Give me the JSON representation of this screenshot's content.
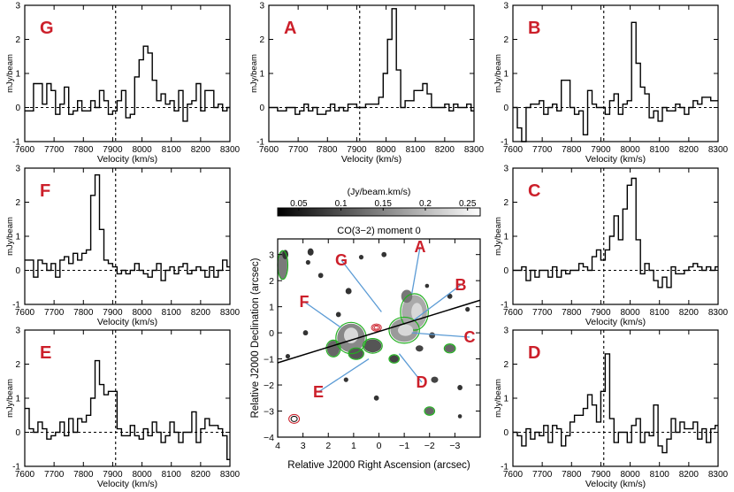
{
  "figure": {
    "spectrum_xlabel": "Velocity (km/s)",
    "spectrum_ylabel": "mJy/beam",
    "spectrum_xticks": [
      "7600",
      "7700",
      "7800",
      "7900",
      "8000",
      "8100",
      "8200",
      "8300"
    ],
    "spectrum_yticks": [
      "-1",
      "0",
      "1",
      "2",
      "3"
    ]
  },
  "chart_data": [
    {
      "type": "line",
      "panel": "G",
      "step": true,
      "xlim": [
        7600,
        8300
      ],
      "ylim": [
        -1,
        3
      ],
      "vline": 7910,
      "hline": 0,
      "x": [
        7600,
        7615,
        7630,
        7645,
        7660,
        7675,
        7690,
        7705,
        7720,
        7735,
        7750,
        7765,
        7780,
        7795,
        7810,
        7825,
        7840,
        7855,
        7870,
        7885,
        7900,
        7915,
        7930,
        7945,
        7960,
        7975,
        7990,
        8005,
        8020,
        8035,
        8050,
        8065,
        8080,
        8095,
        8110,
        8125,
        8140,
        8155,
        8170,
        8185,
        8200,
        8215,
        8230,
        8245,
        8260,
        8275,
        8290
      ],
      "y": [
        -0.1,
        -0.1,
        0.7,
        0.7,
        0.1,
        0.7,
        0.5,
        -0.2,
        0.1,
        0.6,
        -0.2,
        -0.1,
        0.2,
        -0.1,
        -0.1,
        0.2,
        0.0,
        0.5,
        0.2,
        -0.2,
        -0.1,
        0.2,
        0.5,
        -0.3,
        -0.2,
        0.9,
        1.4,
        1.8,
        1.6,
        0.8,
        0.2,
        0.4,
        0.1,
        0.2,
        -0.1,
        0.5,
        -0.4,
        0.1,
        0.2,
        0.7,
        -0.1,
        0.5,
        0.5,
        0.0,
        0.1,
        -0.1,
        0.0
      ]
    },
    {
      "type": "line",
      "panel": "A",
      "step": true,
      "xlim": [
        7600,
        8300
      ],
      "ylim": [
        -1,
        3
      ],
      "vline": 7910,
      "hline": 0,
      "x": [
        7600,
        7615,
        7630,
        7645,
        7660,
        7675,
        7690,
        7705,
        7720,
        7735,
        7750,
        7765,
        7780,
        7795,
        7810,
        7825,
        7840,
        7855,
        7870,
        7885,
        7900,
        7915,
        7930,
        7945,
        7960,
        7975,
        7990,
        8005,
        8020,
        8035,
        8050,
        8065,
        8080,
        8095,
        8110,
        8125,
        8140,
        8155,
        8170,
        8185,
        8200,
        8215,
        8230,
        8245,
        8260,
        8275,
        8290
      ],
      "y": [
        0.0,
        0.0,
        -0.1,
        -0.1,
        0.0,
        0.0,
        -0.2,
        -0.1,
        0.1,
        -0.1,
        0.0,
        -0.2,
        -0.2,
        -0.1,
        0.1,
        -0.1,
        0.0,
        -0.1,
        0.1,
        0.1,
        0.0,
        0.0,
        0.1,
        0.1,
        0.1,
        0.3,
        1.0,
        2.0,
        2.9,
        1.1,
        0.0,
        0.2,
        0.2,
        0.5,
        0.5,
        0.7,
        0.4,
        0.0,
        0.0,
        0.0,
        0.1,
        -0.1,
        0.1,
        0.0,
        0.0,
        0.1,
        -0.1
      ]
    },
    {
      "type": "line",
      "panel": "B",
      "step": true,
      "xlim": [
        7600,
        8300
      ],
      "ylim": [
        -1,
        3
      ],
      "vline": 7910,
      "hline": 0,
      "x": [
        7600,
        7615,
        7630,
        7645,
        7660,
        7675,
        7690,
        7705,
        7720,
        7735,
        7750,
        7765,
        7780,
        7795,
        7810,
        7825,
        7840,
        7855,
        7870,
        7885,
        7900,
        7915,
        7930,
        7945,
        7960,
        7975,
        7990,
        8005,
        8020,
        8035,
        8050,
        8065,
        8080,
        8095,
        8110,
        8125,
        8140,
        8155,
        8170,
        8185,
        8200,
        8215,
        8230,
        8245,
        8260,
        8275,
        8290
      ],
      "y": [
        0.0,
        -0.6,
        -1.5,
        0.0,
        0.1,
        0.1,
        0.2,
        -0.2,
        0.0,
        0.1,
        -0.1,
        0.8,
        0.8,
        0.0,
        -0.2,
        -0.1,
        -0.8,
        0.5,
        0.1,
        0.0,
        0.0,
        -0.2,
        0.2,
        0.4,
        -0.2,
        0.1,
        0.2,
        2.5,
        1.3,
        0.6,
        0.4,
        -0.3,
        -0.1,
        -0.4,
        0.0,
        -0.1,
        -0.1,
        0.1,
        0.0,
        -0.2,
        0.0,
        0.2,
        0.1,
        0.3,
        0.3,
        0.2,
        0.2
      ]
    },
    {
      "type": "line",
      "panel": "F",
      "step": true,
      "xlim": [
        7600,
        8300
      ],
      "ylim": [
        -1,
        3
      ],
      "vline": 7910,
      "hline": 0,
      "x": [
        7600,
        7615,
        7630,
        7645,
        7660,
        7675,
        7690,
        7705,
        7720,
        7735,
        7750,
        7765,
        7780,
        7795,
        7810,
        7825,
        7840,
        7855,
        7870,
        7885,
        7900,
        7915,
        7930,
        7945,
        7960,
        7975,
        7990,
        8005,
        8020,
        8035,
        8050,
        8065,
        8080,
        8095,
        8110,
        8125,
        8140,
        8155,
        8170,
        8185,
        8200,
        8215,
        8230,
        8245,
        8260,
        8275,
        8290
      ],
      "y": [
        0.3,
        0.3,
        -0.2,
        0.3,
        0.2,
        0.0,
        0.2,
        -0.2,
        0.3,
        0.4,
        0.2,
        0.5,
        0.3,
        0.5,
        0.6,
        2.2,
        2.8,
        1.2,
        0.3,
        0.2,
        0.1,
        -0.1,
        0.0,
        -0.1,
        0.0,
        0.2,
        0.0,
        -0.1,
        -0.2,
        0.0,
        0.2,
        -0.3,
        0.0,
        0.1,
        -0.1,
        0.1,
        0.2,
        -0.1,
        0.0,
        0.1,
        0.0,
        -0.2,
        0.1,
        -0.2,
        0.0,
        0.3,
        0.1
      ]
    },
    {
      "type": "line",
      "panel": "C",
      "step": true,
      "xlim": [
        7600,
        8300
      ],
      "ylim": [
        -1,
        3
      ],
      "vline": 7910,
      "hline": 0,
      "x": [
        7600,
        7615,
        7630,
        7645,
        7660,
        7675,
        7690,
        7705,
        7720,
        7735,
        7750,
        7765,
        7780,
        7795,
        7810,
        7825,
        7840,
        7855,
        7870,
        7885,
        7900,
        7915,
        7930,
        7945,
        7960,
        7975,
        7990,
        8005,
        8020,
        8035,
        8050,
        8065,
        8080,
        8095,
        8110,
        8125,
        8140,
        8155,
        8170,
        8185,
        8200,
        8215,
        8230,
        8245,
        8260,
        8275,
        8290
      ],
      "y": [
        0.0,
        0.0,
        0.1,
        -0.3,
        0.0,
        -0.2,
        0.0,
        0.0,
        -0.2,
        0.1,
        -0.2,
        0.0,
        -0.1,
        0.0,
        0.0,
        0.2,
        0.1,
        0.0,
        0.4,
        0.6,
        0.3,
        0.6,
        1.0,
        1.6,
        0.9,
        1.8,
        2.5,
        2.7,
        0.9,
        -0.1,
        0.2,
        0.0,
        -0.3,
        -0.5,
        -0.2,
        -0.5,
        0.1,
        -0.1,
        -0.1,
        0.0,
        0.1,
        0.2,
        0.1,
        0.0,
        0.1,
        0.0,
        0.1
      ]
    },
    {
      "type": "line",
      "panel": "E",
      "step": true,
      "xlim": [
        7600,
        8300
      ],
      "ylim": [
        -1,
        3
      ],
      "vline": 7910,
      "hline": 0,
      "x": [
        7600,
        7615,
        7630,
        7645,
        7660,
        7675,
        7690,
        7705,
        7720,
        7735,
        7750,
        7765,
        7780,
        7795,
        7810,
        7825,
        7840,
        7855,
        7870,
        7885,
        7900,
        7915,
        7930,
        7945,
        7960,
        7975,
        7990,
        8005,
        8020,
        8035,
        8050,
        8065,
        8080,
        8095,
        8110,
        8125,
        8140,
        8155,
        8170,
        8185,
        8200,
        8215,
        8230,
        8245,
        8260,
        8275,
        8290
      ],
      "y": [
        0.7,
        0.1,
        0.0,
        0.3,
        0.1,
        -0.2,
        -0.1,
        0.0,
        0.3,
        -0.1,
        0.4,
        0.0,
        0.4,
        0.3,
        0.5,
        1.0,
        2.1,
        1.4,
        1.1,
        1.2,
        1.2,
        0.1,
        -0.1,
        -0.1,
        0.2,
        -0.1,
        -0.2,
        0.1,
        -0.1,
        0.3,
        0.0,
        -0.3,
        -0.1,
        0.3,
        0.0,
        -0.3,
        0.0,
        0.0,
        0.6,
        -0.3,
        0.1,
        0.4,
        0.2,
        0.2,
        0.1,
        -0.1,
        -0.8
      ]
    },
    {
      "type": "line",
      "panel": "D",
      "step": true,
      "xlim": [
        7600,
        8300
      ],
      "ylim": [
        -1,
        3
      ],
      "vline": 7910,
      "hline": 0,
      "x": [
        7600,
        7615,
        7630,
        7645,
        7660,
        7675,
        7690,
        7705,
        7720,
        7735,
        7750,
        7765,
        7780,
        7795,
        7810,
        7825,
        7840,
        7855,
        7870,
        7885,
        7900,
        7915,
        7930,
        7945,
        7960,
        7975,
        7990,
        8005,
        8020,
        8035,
        8050,
        8065,
        8080,
        8095,
        8110,
        8125,
        8140,
        8155,
        8170,
        8185,
        8200,
        8215,
        8230,
        8245,
        8260,
        8275,
        8290
      ],
      "y": [
        0.0,
        -0.1,
        -0.4,
        0.1,
        -0.2,
        0.0,
        -0.1,
        0.2,
        -0.3,
        0.2,
        0.1,
        -0.4,
        -0.1,
        0.3,
        0.5,
        0.5,
        0.7,
        1.1,
        0.8,
        0.3,
        1.2,
        2.3,
        0.4,
        -0.3,
        0.0,
        0.0,
        -0.3,
        0.2,
        0.4,
        -0.3,
        0.0,
        -0.1,
        0.8,
        -0.4,
        -0.6,
        -0.2,
        0.4,
        0.0,
        0.3,
        0.1,
        0.1,
        0.3,
        -0.2,
        0.1,
        -0.3,
        0.1,
        0.2
      ]
    },
    {
      "type": "heatmap",
      "panel": "map",
      "title": "CO(3−2) moment 0",
      "colorbar_label": "(Jy/beam.km/s)",
      "colorbar_ticks": [
        "0.05",
        "0.1",
        "0.15",
        "0.2",
        "0.25"
      ],
      "xlabel": "Relative J2000 Right Ascension (arcsec)",
      "ylabel": "Relative J2000 Declination (arcsec)",
      "xticks": [
        "4",
        "3",
        "2",
        "1",
        "0",
        "−1",
        "−2",
        "−3"
      ],
      "yticks": [
        "−4",
        "−3",
        "−2",
        "−1",
        "0",
        "1",
        "2",
        "3"
      ],
      "xlim": [
        4,
        -4
      ],
      "ylim": [
        -4,
        3.6
      ],
      "labels": [
        "G",
        "A",
        "B",
        "F",
        "C",
        "E",
        "D"
      ]
    }
  ]
}
